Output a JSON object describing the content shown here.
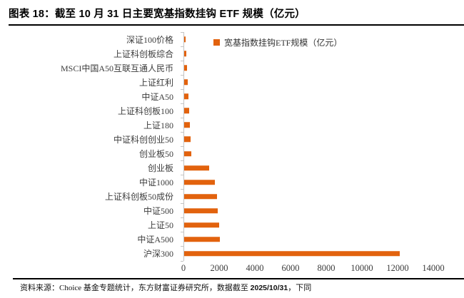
{
  "header": {
    "title": "图表 18：截至 10 月 31 日主要宽基指数挂钩 ETF 规模（亿元）"
  },
  "legend": {
    "label": "宽基指数挂钩ETF规模（亿元）"
  },
  "chart_data": {
    "type": "bar",
    "orientation": "horizontal",
    "title": "截至 10 月 31 日主要宽基指数挂钩 ETF 规模（亿元）",
    "series_name": "宽基指数挂钩ETF规模（亿元）",
    "categories": [
      "深证100价格",
      "上证科创板综合",
      "MSCI中国A50互联互通人民币",
      "上证红利",
      "中证A50",
      "上证科创板100",
      "上证180",
      "中证科创创业50",
      "创业板50",
      "创业板",
      "中证1000",
      "上证科创板50成份",
      "中证500",
      "上证50",
      "中证A500",
      "沪深300"
    ],
    "values": [
      75,
      115,
      150,
      190,
      230,
      270,
      310,
      365,
      390,
      1400,
      1730,
      1820,
      1880,
      1940,
      2010,
      12080
    ],
    "xlim": [
      0,
      14000
    ],
    "x_ticks": [
      0,
      2000,
      4000,
      6000,
      8000,
      10000,
      12000,
      14000
    ],
    "grid": false,
    "legend_position": "top"
  },
  "colors": {
    "bar": "#E2620D",
    "axis": "#C4C4C4",
    "tick_text": "#3C3C3C",
    "title_text": "#000000"
  },
  "footer": {
    "text_before_date": "资料来源：Choice 基金专题统计，东方财富证券研究所，数据截至 ",
    "date": "2025/10/31",
    "text_after_date": "，下同"
  }
}
